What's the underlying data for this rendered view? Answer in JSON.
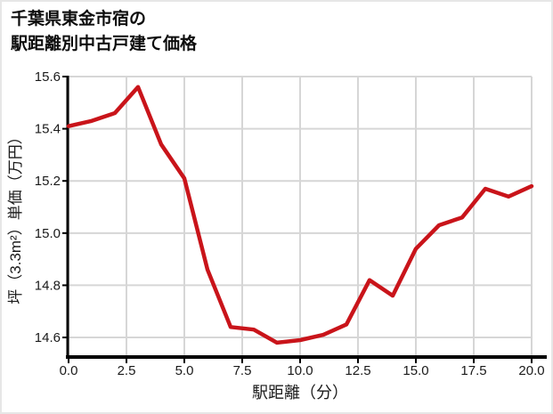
{
  "title": {
    "line1": "千葉県東金市宿の",
    "line2": "駅距離別中古戸建て価格"
  },
  "chart_data": {
    "type": "line",
    "title": "千葉県東金市宿の駅距離別中古戸建て価格",
    "xlabel": "駅距離（分）",
    "ylabel": "坪（3.3m²）単価（万円）",
    "x": [
      0,
      1,
      2,
      3,
      4,
      5,
      6,
      7,
      8,
      9,
      10,
      11,
      12,
      13,
      14,
      15,
      16,
      17,
      18,
      19,
      20
    ],
    "y": [
      15.41,
      15.43,
      15.46,
      15.56,
      15.34,
      15.21,
      14.86,
      14.64,
      14.63,
      14.58,
      14.59,
      14.61,
      14.65,
      14.82,
      14.76,
      14.94,
      15.03,
      15.06,
      15.17,
      15.14,
      15.18
    ],
    "xlim": [
      0,
      20
    ],
    "ylim": [
      14.525,
      15.6
    ],
    "xticks": [
      0,
      2.5,
      5,
      7.5,
      10,
      12.5,
      15,
      17.5,
      20
    ],
    "xtick_labels": [
      "0.0",
      "2.5",
      "5.0",
      "7.5",
      "10.0",
      "12.5",
      "15.0",
      "17.5",
      "20.0"
    ],
    "yticks": [
      14.6,
      14.8,
      15.0,
      15.2,
      15.4,
      15.6
    ],
    "ytick_labels": [
      "14.6",
      "14.8",
      "15.0",
      "15.2",
      "15.4",
      "15.6"
    ],
    "grid": true,
    "legend": "none",
    "colors": {
      "line": "#c9141a",
      "grid": "#d6d6d6",
      "spine": "#000000",
      "tick_text": "#1a1a1a"
    },
    "line_width": 4.5
  }
}
